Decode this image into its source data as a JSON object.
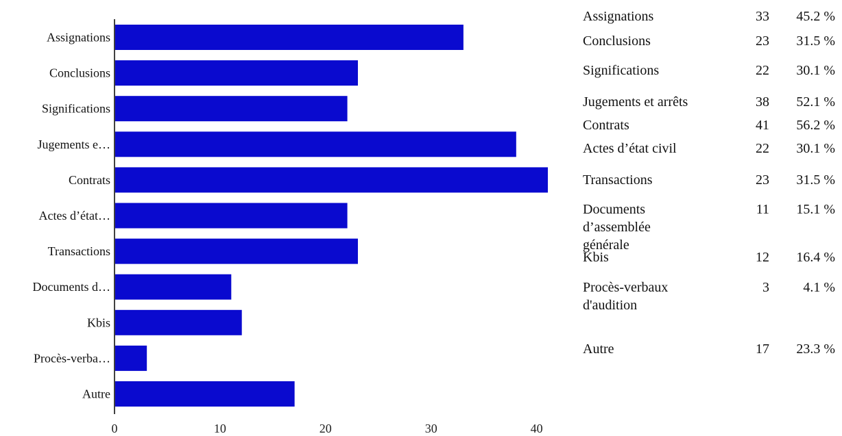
{
  "chart_data": {
    "type": "bar",
    "orientation": "horizontal",
    "categories": [
      "Assignations",
      "Conclusions",
      "Significations",
      "Jugements e…",
      "Contrats",
      "Actes d’état…",
      "Transactions",
      "Documents d…",
      "Kbis",
      "Procès-verba…",
      "Autre"
    ],
    "values": [
      33,
      23,
      22,
      38,
      41,
      22,
      23,
      11,
      12,
      3,
      17
    ],
    "xlim": [
      0,
      41
    ],
    "xticks": [
      0,
      10,
      20,
      30,
      40
    ],
    "bar_color": "#0a0acf",
    "grid": false
  },
  "legend_table": [
    {
      "name": "Assignations",
      "count": "33",
      "pct": "45.2 %"
    },
    {
      "name": "Conclusions",
      "count": "23",
      "pct": "31.5 %"
    },
    {
      "name": "Significations",
      "count": "22",
      "pct": "30.1 %"
    },
    {
      "name": "Jugements et arrêts",
      "count": "38",
      "pct": "52.1 %"
    },
    {
      "name": "Contrats",
      "count": "41",
      "pct": "56.2 %"
    },
    {
      "name": "Actes d’état civil",
      "count": "22",
      "pct": "30.1 %"
    },
    {
      "name": "Transactions",
      "count": "23",
      "pct": "31.5 %"
    },
    {
      "name": "Documents\nd’assemblée\ngénérale",
      "count": "11",
      "pct": "15.1 %"
    },
    {
      "name": "Kbis",
      "count": "12",
      "pct": "16.4 %"
    },
    {
      "name": "Procès-verbaux\nd'audition",
      "count": "3",
      "pct": "4.1 %"
    },
    {
      "name": "Autre",
      "count": "17",
      "pct": "23.3 %"
    }
  ]
}
